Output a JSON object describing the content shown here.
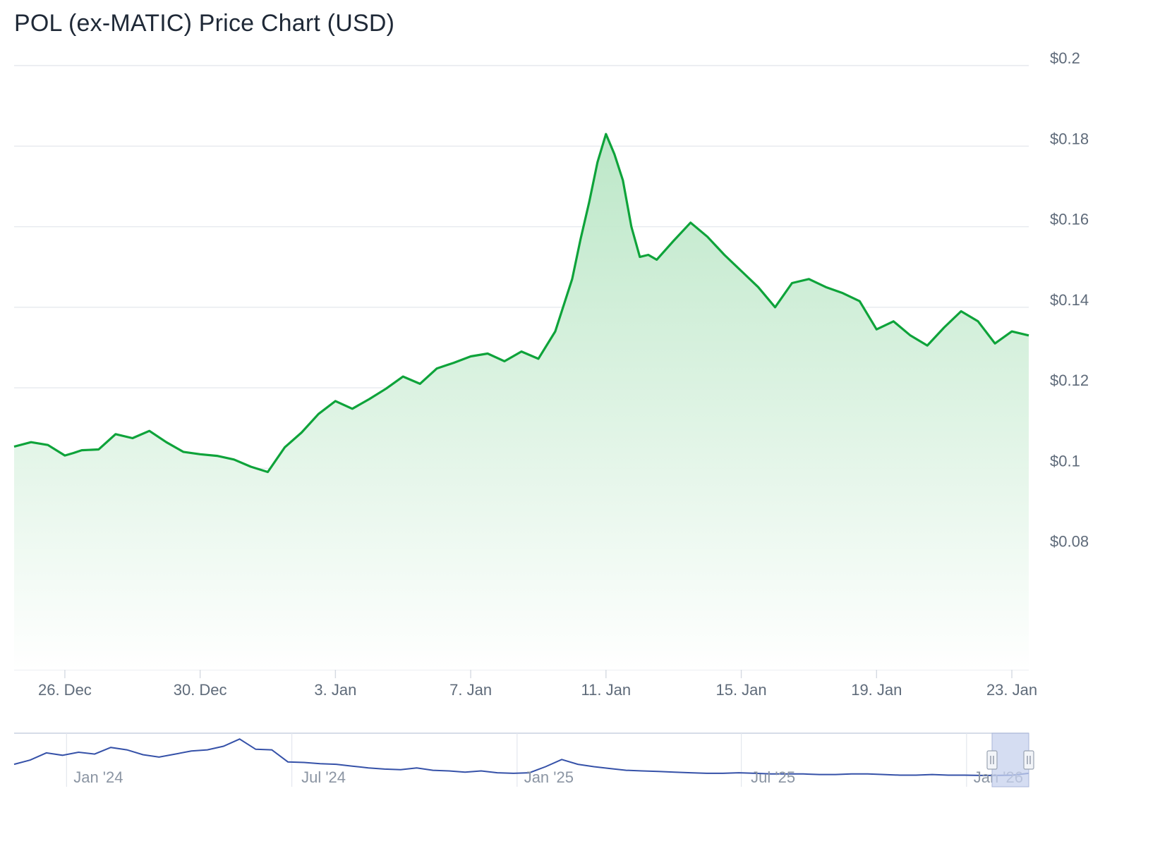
{
  "title": "POL (ex-MATIC) Price Chart (USD)",
  "colors": {
    "line": "#0ea33a",
    "fill_top": "#b9e6c5",
    "fill_bottom": "#ffffff",
    "grid": "#e6e9ee",
    "nav_line": "#3551a8",
    "nav_mask": "#c7d2ee",
    "nav_handle": "#f2f4f8"
  },
  "chart_data": {
    "type": "area",
    "title": "POL (ex-MATIC) Price Chart (USD)",
    "xlabel": "",
    "ylabel": "",
    "ylim": [
      0.05,
      0.2
    ],
    "yticks": [
      0.08,
      0.1,
      0.12,
      0.14,
      0.16,
      0.18,
      0.2
    ],
    "ytick_labels": [
      "$0.08",
      "$0.1",
      "$0.12",
      "$0.14",
      "$0.16",
      "$0.18",
      "$0.2"
    ],
    "xtick_labels": [
      "26. Dec",
      "30. Dec",
      "3. Jan",
      "7. Jan",
      "11. Jan",
      "15. Jan",
      "19. Jan",
      "23. Jan"
    ],
    "xticks": [
      "2025-12-26",
      "2025-12-30",
      "2026-01-03",
      "2026-01-07",
      "2026-01-11",
      "2026-01-15",
      "2026-01-19",
      "2026-01-23"
    ],
    "xlim": [
      "2025-12-24 12:00",
      "2026-01-23 12:00"
    ],
    "grid": true,
    "legend": "none",
    "series": [
      {
        "x": [
          "2025-12-24 12:00",
          "2025-12-25 00:00",
          "2025-12-25 12:00",
          "2025-12-26 00:00",
          "2025-12-26 06:00",
          "2025-12-26 12:00",
          "2025-12-27 00:00",
          "2025-12-27 12:00",
          "2025-12-28 00:00",
          "2025-12-28 12:00",
          "2025-12-29 00:00",
          "2025-12-29 12:00",
          "2025-12-30 00:00",
          "2025-12-30 12:00",
          "2025-12-31 00:00",
          "2025-12-31 12:00",
          "2026-01-01 00:00",
          "2026-01-01 12:00",
          "2026-01-02 00:00",
          "2026-01-02 12:00",
          "2026-01-03 00:00",
          "2026-01-03 12:00",
          "2026-01-04 00:00",
          "2026-01-04 12:00",
          "2026-01-05 00:00",
          "2026-01-05 12:00",
          "2026-01-06 00:00",
          "2026-01-06 12:00",
          "2026-01-07 00:00",
          "2026-01-07 12:00",
          "2026-01-08 00:00",
          "2026-01-08 12:00",
          "2026-01-09 00:00",
          "2026-01-09 12:00",
          "2026-01-10 00:00",
          "2026-01-10 06:00",
          "2026-01-10 12:00",
          "2026-01-10 18:00",
          "2026-01-11 00:00",
          "2026-01-11 06:00",
          "2026-01-11 12:00",
          "2026-01-11 18:00",
          "2026-01-12 00:00",
          "2026-01-12 06:00",
          "2026-01-12 12:00",
          "2026-01-13 00:00",
          "2026-01-13 12:00",
          "2026-01-14 00:00",
          "2026-01-14 12:00",
          "2026-01-15 00:00",
          "2026-01-15 12:00",
          "2026-01-16 00:00",
          "2026-01-16 12:00",
          "2026-01-17 00:00",
          "2026-01-17 12:00",
          "2026-01-18 00:00",
          "2026-01-18 12:00",
          "2026-01-19 00:00",
          "2026-01-19 12:00",
          "2026-01-20 00:00",
          "2026-01-20 12:00",
          "2026-01-21 00:00",
          "2026-01-21 12:00",
          "2026-01-22 00:00",
          "2026-01-22 12:00",
          "2026-01-23 00:00",
          "2026-01-23 12:00"
        ],
        "values": [
          0.1054,
          0.1065,
          0.1058,
          0.1032,
          0.1038,
          0.1045,
          0.1047,
          0.1085,
          0.1075,
          0.1093,
          0.1065,
          0.1041,
          0.1035,
          0.1031,
          0.1022,
          0.1004,
          0.0991,
          0.1052,
          0.1089,
          0.1135,
          0.1167,
          0.1148,
          0.1172,
          0.1198,
          0.1228,
          0.121,
          0.1248,
          0.1262,
          0.1278,
          0.1285,
          0.1266,
          0.129,
          0.1272,
          0.134,
          0.147,
          0.157,
          0.166,
          0.176,
          0.183,
          0.178,
          0.1715,
          0.16,
          0.1525,
          0.153,
          0.1518,
          0.1565,
          0.161,
          0.1575,
          0.153,
          0.149,
          0.145,
          0.14,
          0.146,
          0.147,
          0.145,
          0.1435,
          0.1415,
          0.1345,
          0.1365,
          0.133,
          0.1305,
          0.135,
          0.139,
          0.1365,
          0.131,
          0.134,
          0.133
        ]
      }
    ]
  },
  "navigator": {
    "xtick_labels": [
      "Jan '24",
      "Jul '24",
      "Jan '25",
      "Jul '25",
      "Jan '26"
    ],
    "values": [
      0.28,
      0.35,
      0.47,
      0.43,
      0.48,
      0.45,
      0.56,
      0.52,
      0.44,
      0.4,
      0.45,
      0.5,
      0.52,
      0.58,
      0.7,
      0.53,
      0.52,
      0.32,
      0.31,
      0.29,
      0.28,
      0.25,
      0.22,
      0.2,
      0.19,
      0.22,
      0.18,
      0.17,
      0.15,
      0.17,
      0.14,
      0.13,
      0.14,
      0.24,
      0.36,
      0.28,
      0.24,
      0.21,
      0.18,
      0.17,
      0.16,
      0.15,
      0.14,
      0.13,
      0.13,
      0.14,
      0.13,
      0.12,
      0.12,
      0.12,
      0.11,
      0.11,
      0.12,
      0.12,
      0.11,
      0.1,
      0.1,
      0.11,
      0.1,
      0.1,
      0.095,
      0.095,
      0.1,
      0.13
    ]
  }
}
